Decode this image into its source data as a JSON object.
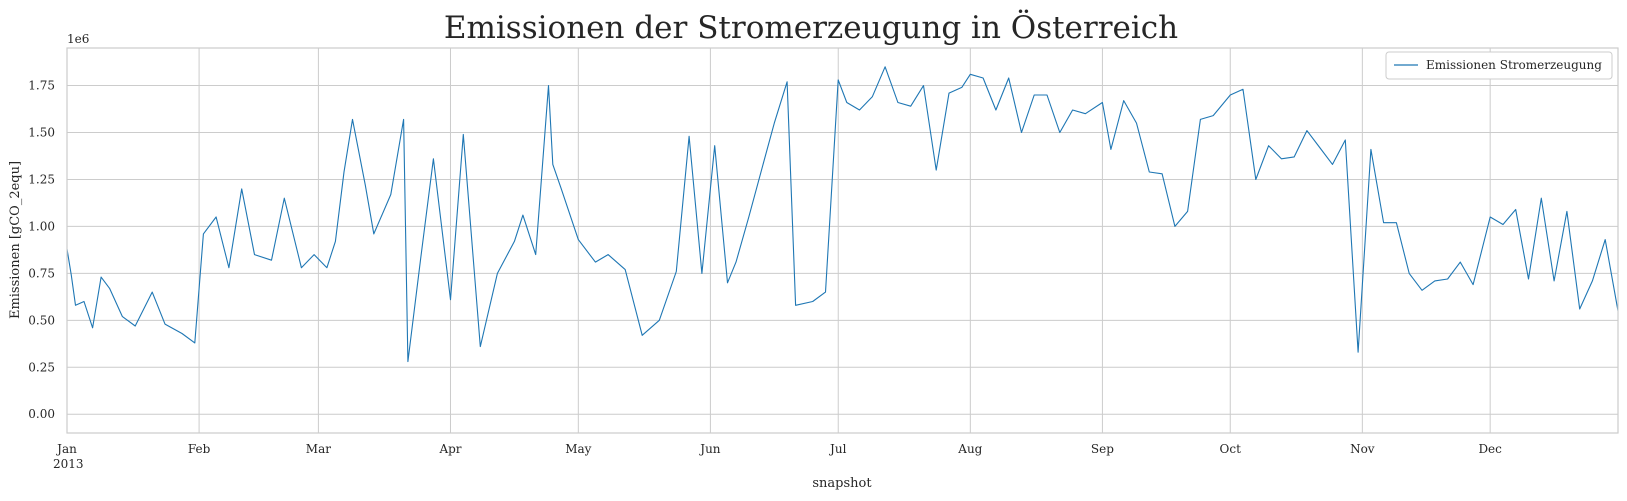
{
  "chart_data": {
    "type": "line",
    "title": "Emissionen der Stromerzeugung in Österreich",
    "xlabel": "snapshot",
    "ylabel": "Emissionen [gCO_2equ]",
    "y_offset_label": "1e6",
    "year_label": "2013",
    "x_range": [
      "2013-01-01",
      "2013-12-31"
    ],
    "ylim": [
      -0.1,
      1.95
    ],
    "y_ticks": [
      0.0,
      0.25,
      0.5,
      0.75,
      1.0,
      1.25,
      1.5,
      1.75
    ],
    "y_tick_labels": [
      "0.00",
      "0.25",
      "0.50",
      "0.75",
      "1.00",
      "1.25",
      "1.50",
      "1.75"
    ],
    "x_ticks": [
      {
        "date": "2013-01-01",
        "label": "Jan"
      },
      {
        "date": "2013-02-01",
        "label": "Feb"
      },
      {
        "date": "2013-03-01",
        "label": "Mar"
      },
      {
        "date": "2013-04-01",
        "label": "Apr"
      },
      {
        "date": "2013-05-01",
        "label": "May"
      },
      {
        "date": "2013-06-01",
        "label": "Jun"
      },
      {
        "date": "2013-07-01",
        "label": "Jul"
      },
      {
        "date": "2013-08-01",
        "label": "Aug"
      },
      {
        "date": "2013-09-01",
        "label": "Sep"
      },
      {
        "date": "2013-10-01",
        "label": "Oct"
      },
      {
        "date": "2013-11-01",
        "label": "Nov"
      },
      {
        "date": "2013-12-01",
        "label": "Dec"
      }
    ],
    "grid": true,
    "legend_position": "top-right",
    "series": [
      {
        "name": "Emissionen Stromerzeugung",
        "color": "#1f77b4",
        "x": [
          "2013-01-01",
          "2013-01-02",
          "2013-01-03",
          "2013-01-04",
          "2013-01-05",
          "2013-01-07",
          "2013-01-09",
          "2013-01-11",
          "2013-01-14",
          "2013-01-17",
          "2013-01-21",
          "2013-01-24",
          "2013-01-28",
          "2013-01-31",
          "2013-02-02",
          "2013-02-05",
          "2013-02-08",
          "2013-02-11",
          "2013-02-14",
          "2013-02-18",
          "2013-02-21",
          "2013-02-25",
          "2013-02-28",
          "2013-03-03",
          "2013-03-05",
          "2013-03-07",
          "2013-03-09",
          "2013-03-12",
          "2013-03-14",
          "2013-03-18",
          "2013-03-21",
          "2013-03-22",
          "2013-03-25",
          "2013-03-28",
          "2013-04-01",
          "2013-04-04",
          "2013-04-08",
          "2013-04-12",
          "2013-04-16",
          "2013-04-18",
          "2013-04-21",
          "2013-04-24",
          "2013-04-25",
          "2013-04-27",
          "2013-05-01",
          "2013-05-05",
          "2013-05-08",
          "2013-05-12",
          "2013-05-16",
          "2013-05-20",
          "2013-05-24",
          "2013-05-27",
          "2013-05-30",
          "2013-06-02",
          "2013-06-05",
          "2013-06-07",
          "2013-06-10",
          "2013-06-13",
          "2013-06-16",
          "2013-06-19",
          "2013-06-21",
          "2013-06-25",
          "2013-06-28",
          "2013-07-01",
          "2013-07-03",
          "2013-07-06",
          "2013-07-09",
          "2013-07-12",
          "2013-07-15",
          "2013-07-18",
          "2013-07-21",
          "2013-07-24",
          "2013-07-27",
          "2013-07-30",
          "2013-08-01",
          "2013-08-04",
          "2013-08-07",
          "2013-08-10",
          "2013-08-13",
          "2013-08-16",
          "2013-08-19",
          "2013-08-22",
          "2013-08-25",
          "2013-08-28",
          "2013-09-01",
          "2013-09-03",
          "2013-09-06",
          "2013-09-09",
          "2013-09-12",
          "2013-09-15",
          "2013-09-18",
          "2013-09-21",
          "2013-09-24",
          "2013-09-27",
          "2013-10-01",
          "2013-10-04",
          "2013-10-07",
          "2013-10-10",
          "2013-10-13",
          "2013-10-16",
          "2013-10-19",
          "2013-10-22",
          "2013-10-25",
          "2013-10-28",
          "2013-10-31",
          "2013-11-03",
          "2013-11-06",
          "2013-11-09",
          "2013-11-12",
          "2013-11-15",
          "2013-11-18",
          "2013-11-21",
          "2013-11-24",
          "2013-11-27",
          "2013-12-01",
          "2013-12-04",
          "2013-12-07",
          "2013-12-10",
          "2013-12-13",
          "2013-12-16",
          "2013-12-19",
          "2013-12-22",
          "2013-12-25",
          "2013-12-28",
          "2013-12-31"
        ],
        "y": [
          0.88,
          0.74,
          0.58,
          0.59,
          0.6,
          0.46,
          0.73,
          0.67,
          0.52,
          0.47,
          0.65,
          0.48,
          0.43,
          0.38,
          0.96,
          1.05,
          0.78,
          1.2,
          0.85,
          0.82,
          1.15,
          0.78,
          0.85,
          0.78,
          0.92,
          1.29,
          1.57,
          1.22,
          0.96,
          1.17,
          1.57,
          0.28,
          0.83,
          1.36,
          0.61,
          1.49,
          0.36,
          0.75,
          0.92,
          1.06,
          0.85,
          1.75,
          1.33,
          1.2,
          0.93,
          0.81,
          0.85,
          0.77,
          0.42,
          0.5,
          0.76,
          1.48,
          0.75,
          1.43,
          0.7,
          0.81,
          1.05,
          1.3,
          1.55,
          1.77,
          0.58,
          0.6,
          0.65,
          1.78,
          1.66,
          1.62,
          1.69,
          1.85,
          1.66,
          1.64,
          1.75,
          1.3,
          1.71,
          1.74,
          1.81,
          1.79,
          1.62,
          1.79,
          1.5,
          1.7,
          1.7,
          1.5,
          1.62,
          1.6,
          1.66,
          1.41,
          1.67,
          1.55,
          1.29,
          1.28,
          1.0,
          1.08,
          1.57,
          1.59,
          1.7,
          1.73,
          1.25,
          1.43,
          1.36,
          1.37,
          1.51,
          1.42,
          1.33,
          1.46,
          0.33,
          1.41,
          1.02,
          1.02,
          0.75,
          0.66,
          0.71,
          0.72,
          0.81,
          0.69,
          1.05,
          1.01,
          1.09,
          0.72,
          1.15,
          0.71,
          1.08,
          0.56,
          0.71,
          0.93,
          0.55
        ]
      }
    ]
  }
}
